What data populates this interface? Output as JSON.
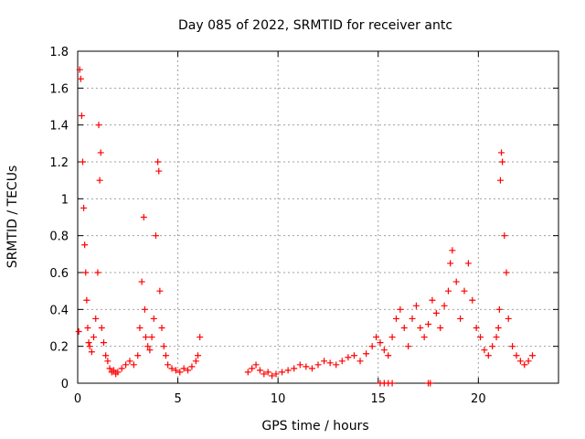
{
  "chart_data": {
    "type": "scatter",
    "title": "Day 085 of 2022, SRMTID for receiver antc",
    "xlabel": "GPS time / hours",
    "ylabel": "SRMTID / TECUs",
    "xlim": [
      0,
      24
    ],
    "ylim": [
      0,
      1.8
    ],
    "x_ticks": [
      0,
      5,
      10,
      15,
      20
    ],
    "x_tick_labels": [
      "0",
      "5",
      "10",
      "15",
      "20"
    ],
    "y_ticks": [
      0,
      0.2,
      0.4,
      0.6,
      0.8,
      1,
      1.2,
      1.4,
      1.6,
      1.8
    ],
    "y_tick_labels": [
      "0",
      "0.2",
      "0.4",
      "0.6",
      "0.8",
      "1",
      "1.2",
      "1.4",
      "1.6",
      "1.8"
    ],
    "grid": true,
    "marker_color": "#ff0000",
    "series": [
      {
        "name": "SRMTID",
        "marker": "plus",
        "x": [
          0.05,
          0.1,
          0.15,
          0.2,
          0.25,
          0.3,
          0.35,
          0.4,
          0.45,
          0.5,
          0.55,
          0.6,
          0.7,
          0.8,
          0.9,
          1.0,
          1.05,
          1.1,
          1.15,
          1.2,
          1.3,
          1.4,
          1.5,
          1.6,
          1.7,
          1.8,
          1.9,
          2.0,
          2.2,
          2.4,
          2.6,
          2.8,
          3.0,
          3.1,
          3.2,
          3.3,
          3.35,
          3.4,
          3.5,
          3.6,
          3.7,
          3.8,
          3.9,
          4.0,
          4.05,
          4.1,
          4.2,
          4.3,
          4.4,
          4.5,
          4.7,
          4.9,
          5.1,
          5.3,
          5.5,
          5.7,
          5.9,
          6.0,
          6.1,
          8.5,
          8.7,
          8.9,
          9.1,
          9.3,
          9.5,
          9.7,
          9.9,
          10.2,
          10.5,
          10.8,
          11.1,
          11.4,
          11.7,
          12.0,
          12.3,
          12.6,
          12.9,
          13.2,
          13.5,
          13.8,
          14.1,
          14.4,
          14.7,
          14.9,
          15.1,
          15.3,
          15.5,
          15.7,
          15.9,
          16.1,
          16.3,
          16.5,
          16.7,
          16.9,
          17.1,
          17.3,
          17.5,
          17.7,
          17.9,
          18.1,
          18.3,
          18.5,
          18.6,
          18.7,
          18.9,
          19.1,
          19.3,
          19.5,
          19.7,
          19.9,
          20.1,
          20.3,
          20.5,
          20.7,
          20.9,
          21.0,
          21.05,
          21.1,
          21.15,
          21.2,
          21.3,
          21.4,
          21.5,
          21.7,
          21.9,
          22.1,
          22.3,
          22.5,
          22.7,
          15.1,
          15.3,
          15.5,
          15.7,
          17.5,
          17.6
        ],
        "y": [
          0.28,
          1.7,
          1.65,
          1.45,
          1.2,
          0.95,
          0.75,
          0.6,
          0.45,
          0.3,
          0.22,
          0.2,
          0.17,
          0.25,
          0.35,
          0.6,
          1.4,
          1.1,
          1.25,
          0.3,
          0.22,
          0.15,
          0.12,
          0.08,
          0.06,
          0.07,
          0.05,
          0.06,
          0.08,
          0.1,
          0.12,
          0.1,
          0.15,
          0.3,
          0.55,
          0.9,
          0.4,
          0.25,
          0.2,
          0.18,
          0.25,
          0.35,
          0.8,
          1.2,
          1.15,
          0.5,
          0.3,
          0.2,
          0.15,
          0.1,
          0.08,
          0.07,
          0.06,
          0.08,
          0.07,
          0.09,
          0.12,
          0.15,
          0.25,
          0.06,
          0.08,
          0.1,
          0.07,
          0.05,
          0.06,
          0.04,
          0.05,
          0.06,
          0.07,
          0.08,
          0.1,
          0.09,
          0.08,
          0.1,
          0.12,
          0.11,
          0.1,
          0.12,
          0.14,
          0.15,
          0.12,
          0.16,
          0.2,
          0.25,
          0.22,
          0.18,
          0.15,
          0.25,
          0.35,
          0.4,
          0.3,
          0.2,
          0.35,
          0.42,
          0.3,
          0.25,
          0.32,
          0.45,
          0.38,
          0.3,
          0.42,
          0.5,
          0.65,
          0.72,
          0.55,
          0.35,
          0.5,
          0.65,
          0.45,
          0.3,
          0.25,
          0.18,
          0.15,
          0.2,
          0.25,
          0.3,
          0.4,
          1.1,
          1.25,
          1.2,
          0.8,
          0.6,
          0.35,
          0.2,
          0.15,
          0.12,
          0.1,
          0.12,
          0.15,
          0.0,
          0.0,
          0.0,
          0.0,
          0.0,
          0.0
        ]
      }
    ]
  }
}
